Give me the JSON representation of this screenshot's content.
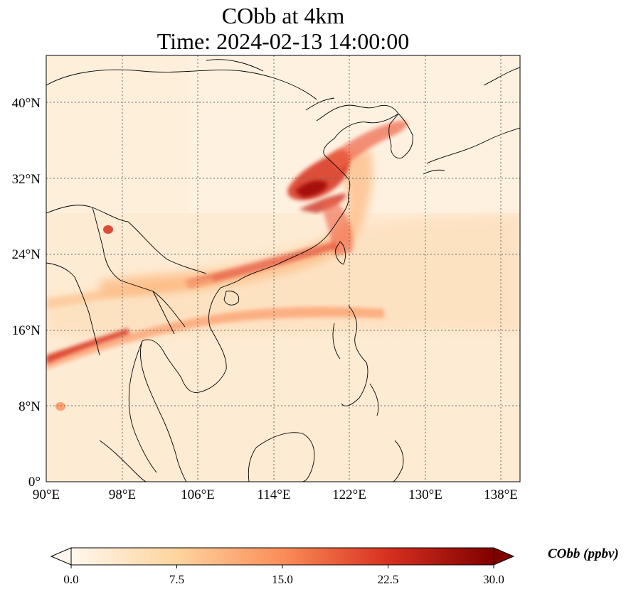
{
  "title": {
    "line1": "CObb at 4km",
    "line2": "Time: 2024-02-13 14:00:00"
  },
  "map": {
    "variable": "CObb",
    "lon_range": [
      90,
      140
    ],
    "lat_range": [
      0,
      44
    ],
    "lon_ticks": [
      "90°E",
      "98°E",
      "106°E",
      "114°E",
      "122°E",
      "130°E",
      "138°E"
    ],
    "lat_ticks": [
      "0°",
      "8°N",
      "16°N",
      "24°N",
      "32°N",
      "40°N"
    ],
    "grid": "dotted",
    "colormap": "OrRd"
  },
  "colorbar": {
    "label": "CObb (ppbv)",
    "ticks": [
      "0.0",
      "7.5",
      "15.0",
      "22.5",
      "30.0"
    ],
    "min": 0,
    "max": 30,
    "extend": "both",
    "colors": [
      "#fff7ec",
      "#fdd49e",
      "#fc8d59",
      "#d7301f",
      "#7f0000"
    ]
  }
}
